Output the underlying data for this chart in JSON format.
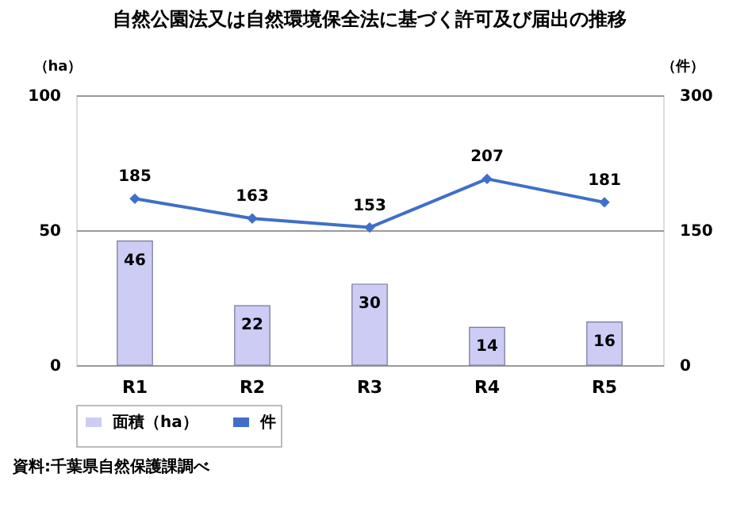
{
  "chart_data": {
    "type": "bar",
    "title": "自然公園法又は自然環境保全法に基づく許可及び届出の推移",
    "ylabel": "（ha）",
    "y2label": "（件）",
    "categories": [
      "R1",
      "R2",
      "R3",
      "R4",
      "R5"
    ],
    "series": [
      {
        "name": "面積（ha）",
        "color": "#ccccf5",
        "values": [
          46,
          22,
          30,
          14,
          16
        ]
      },
      {
        "name": "件",
        "type": "line",
        "axis": "y2",
        "color": "#3f6fc8",
        "marker": "diamond",
        "values": [
          185,
          163,
          153,
          207,
          181
        ]
      }
    ],
    "ylim": [
      0,
      100
    ],
    "yticks": [
      0,
      50,
      100
    ],
    "y2lim": [
      0,
      300
    ],
    "y2ticks": [
      0,
      150,
      300
    ],
    "grid": "y",
    "legend": "bottom",
    "data_labels": true,
    "annotations": [
      "資料:千葉県自然保護課調べ"
    ]
  }
}
